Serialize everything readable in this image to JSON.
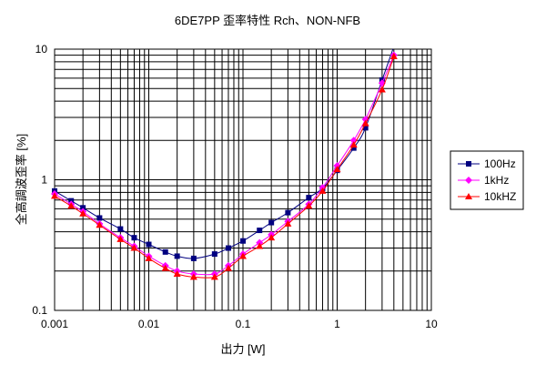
{
  "chart_data": {
    "type": "line",
    "title": "6DE7PP 歪率特性 Rch、NON-NFB",
    "xlabel": "出力 [W]",
    "ylabel": "全高調波歪率 [%]",
    "xscale": "log",
    "yscale": "log",
    "xlim": [
      0.001,
      10
    ],
    "ylim": [
      0.1,
      10
    ],
    "x_ticks": [
      "0.001",
      "0.01",
      "0.1",
      "1",
      "10"
    ],
    "y_ticks": [
      "0.1",
      "1",
      "10"
    ],
    "grid": true,
    "legend_position": "right",
    "series": [
      {
        "name": "100Hz",
        "color": "#000080",
        "marker": "square",
        "x": [
          0.001,
          0.0015,
          0.002,
          0.003,
          0.005,
          0.007,
          0.01,
          0.015,
          0.02,
          0.03,
          0.05,
          0.07,
          0.1,
          0.15,
          0.2,
          0.3,
          0.5,
          0.7,
          1.0,
          1.5,
          2.0,
          3.0,
          4.0
        ],
        "y": [
          0.82,
          0.69,
          0.61,
          0.51,
          0.42,
          0.36,
          0.32,
          0.28,
          0.26,
          0.25,
          0.27,
          0.3,
          0.34,
          0.41,
          0.47,
          0.56,
          0.73,
          0.86,
          1.18,
          1.75,
          2.5,
          5.8,
          10.5
        ]
      },
      {
        "name": "1kHz",
        "color": "#ff00ff",
        "marker": "diamond",
        "x": [
          0.001,
          0.0015,
          0.002,
          0.003,
          0.005,
          0.007,
          0.01,
          0.015,
          0.02,
          0.03,
          0.05,
          0.07,
          0.1,
          0.15,
          0.2,
          0.3,
          0.5,
          0.7,
          1.0,
          1.5,
          2.0,
          3.0,
          4.0
        ],
        "y": [
          0.78,
          0.65,
          0.57,
          0.46,
          0.36,
          0.31,
          0.26,
          0.22,
          0.2,
          0.19,
          0.19,
          0.22,
          0.27,
          0.33,
          0.38,
          0.48,
          0.65,
          0.87,
          1.28,
          2.0,
          2.9,
          5.5,
          9.0
        ]
      },
      {
        "name": "10kHZ",
        "color": "#ff0000",
        "marker": "triangle",
        "x": [
          0.001,
          0.0015,
          0.002,
          0.003,
          0.005,
          0.007,
          0.01,
          0.015,
          0.02,
          0.03,
          0.05,
          0.07,
          0.1,
          0.15,
          0.2,
          0.3,
          0.5,
          0.7,
          1.0,
          1.5,
          2.0,
          3.0,
          4.0
        ],
        "y": [
          0.75,
          0.63,
          0.55,
          0.45,
          0.35,
          0.3,
          0.25,
          0.21,
          0.19,
          0.18,
          0.18,
          0.21,
          0.26,
          0.31,
          0.36,
          0.46,
          0.63,
          0.82,
          1.2,
          1.85,
          2.7,
          4.9,
          8.8
        ]
      }
    ]
  }
}
